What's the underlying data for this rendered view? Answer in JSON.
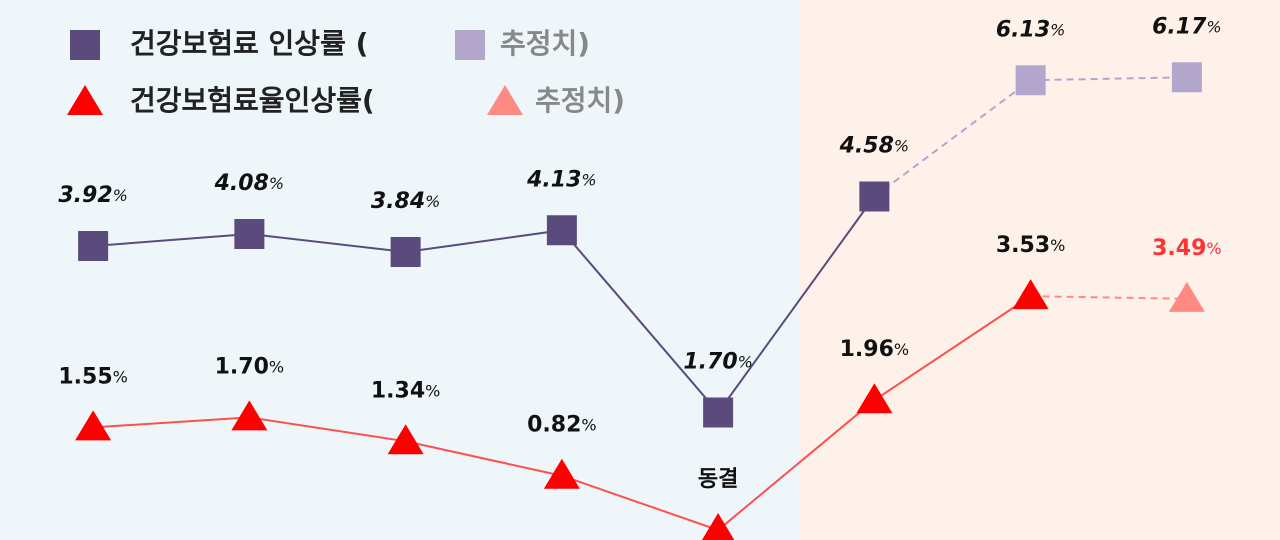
{
  "chart_data": {
    "type": "line",
    "categories": [
      null,
      null,
      null,
      null,
      null,
      null,
      null,
      null
    ],
    "ylim": [
      -0.15,
      8
    ],
    "y2lim": [
      0,
      7.2
    ],
    "series": [
      {
        "name": "건강보험료 인상률 (",
        "color": "#5b4a7c",
        "marker": "square",
        "axis": "y2",
        "values": [
          3.92,
          4.08,
          3.84,
          4.13,
          1.7,
          4.58,
          null,
          null
        ],
        "value_labels": [
          "3.92%",
          "4.08%",
          "3.84%",
          "4.13%",
          "1.70%",
          "4.58%",
          null,
          null
        ]
      },
      {
        "name": "추정치)",
        "color": "#b3a6cc",
        "marker": "square",
        "axis": "y2",
        "dashed": true,
        "values": [
          null,
          null,
          null,
          null,
          null,
          null,
          6.13,
          6.17
        ],
        "value_labels": [
          null,
          null,
          null,
          null,
          null,
          null,
          "6.13%",
          "6.17%"
        ]
      },
      {
        "name": "건강보험료율인상률(",
        "color": "#ff0000",
        "marker": "triangle",
        "values": [
          1.55,
          1.7,
          1.34,
          0.82,
          0,
          1.96,
          3.53,
          null
        ],
        "value_labels": [
          "1.55%",
          "1.70%",
          "1.34%",
          "0.82%",
          "동결",
          "1.96%",
          "3.53%",
          null
        ]
      },
      {
        "name": "추정치)",
        "color": "#ff8a84",
        "marker": "triangle",
        "dashed": true,
        "values": [
          null,
          null,
          null,
          null,
          null,
          null,
          null,
          3.49
        ],
        "value_labels": [
          null,
          null,
          null,
          null,
          null,
          null,
          null,
          "3.49%"
        ]
      }
    ]
  }
}
